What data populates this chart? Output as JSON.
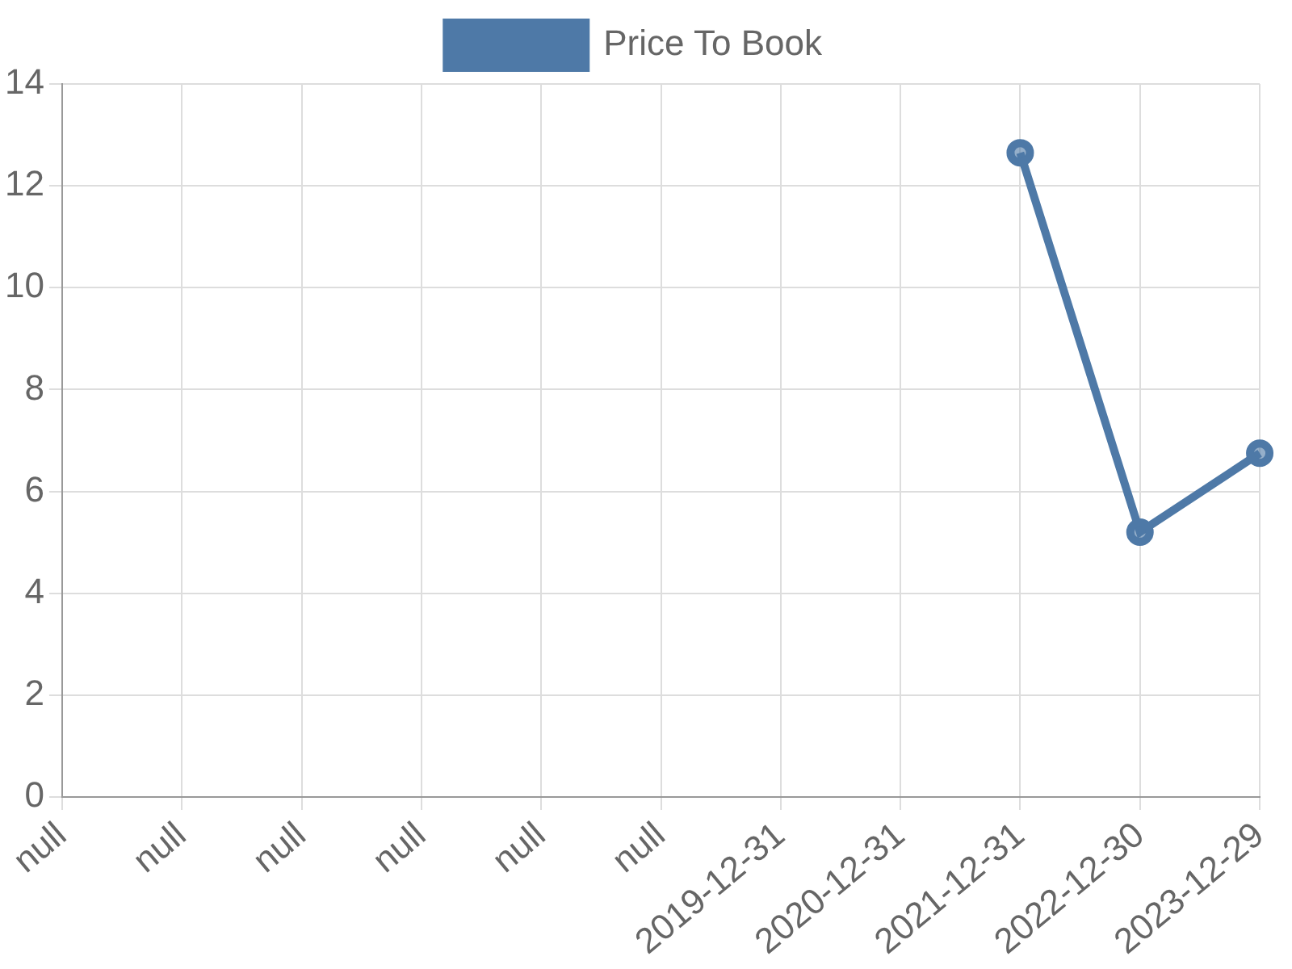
{
  "chart_data": {
    "type": "line",
    "categories": [
      "null",
      "null",
      "null",
      "null",
      "null",
      "null",
      "2019-12-31",
      "2020-12-31",
      "2021-12-31",
      "2022-12-30",
      "2023-12-29"
    ],
    "series": [
      {
        "name": "Price To Book",
        "color": "#4e79a7",
        "values": [
          null,
          null,
          null,
          null,
          null,
          null,
          null,
          null,
          12.65,
          5.2,
          6.75
        ]
      }
    ],
    "ylim": [
      0,
      14
    ],
    "yticks": [
      0,
      2,
      4,
      6,
      8,
      10,
      12,
      14
    ],
    "grid": true,
    "legend": "top",
    "marker": "circle",
    "line_style": "solid"
  }
}
